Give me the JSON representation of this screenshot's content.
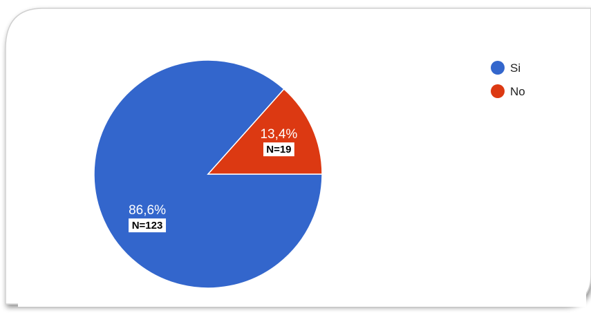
{
  "chart_data": {
    "type": "pie",
    "title": "",
    "categories": [
      "Si",
      "No"
    ],
    "values": [
      86.6,
      13.4
    ],
    "counts": [
      123,
      19
    ],
    "value_labels": [
      "86,6%",
      "13,4%"
    ],
    "count_labels": [
      "N=123",
      "N=19"
    ],
    "colors": [
      "#3366cc",
      "#dc3912"
    ],
    "legend_position": "top-right",
    "start_angle_deg": 0
  }
}
